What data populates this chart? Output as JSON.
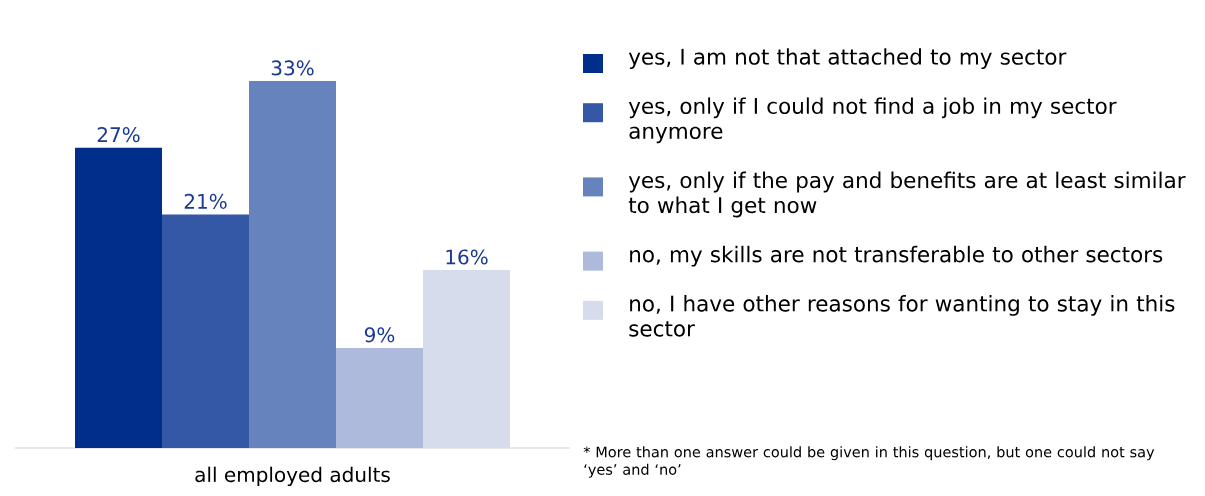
{
  "chart_data": {
    "type": "bar",
    "categories": [
      null
    ],
    "xlabel": "all employed adults",
    "legend": "right",
    "series": [
      {
        "name": "yes, I am not that attached to my sector",
        "color": "#002e8a",
        "values": [
          27
        ],
        "value_labels": [
          "27%"
        ]
      },
      {
        "name": "yes, only if I could not find a job in my sector anymore",
        "color": "#3458a6",
        "values": [
          21
        ],
        "value_labels": [
          "21%"
        ]
      },
      {
        "name": "yes, only if the pay and benefits are at least similar to what I get now",
        "color": "#6683bd",
        "values": [
          33
        ],
        "value_labels": [
          "33%"
        ]
      },
      {
        "name": "no, my skills are not transferable to other sectors",
        "color": "#adbadc",
        "values": [
          9
        ],
        "value_labels": [
          "9%"
        ]
      },
      {
        "name": "no, I have other reasons for wanting to stay in this sector",
        "color": "#d6dcec",
        "values": [
          16
        ],
        "value_labels": [
          "16%"
        ]
      }
    ],
    "annotations": [
      "* More than one answer could be given in this question, but one could not say ‘yes’ and ‘no’"
    ]
  }
}
